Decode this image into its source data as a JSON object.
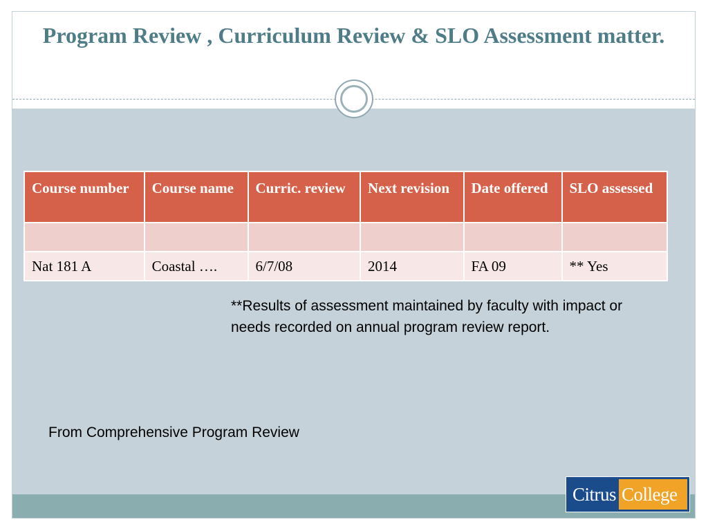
{
  "slide": {
    "title": "Program Review , Curriculum Review & SLO Assessment matter.",
    "table": {
      "headers": [
        "Course number",
        "Course name",
        "Curric. review",
        "Next revision",
        "Date offered",
        "SLO assessed"
      ],
      "rows": [
        [
          "",
          "",
          "",
          "",
          "",
          ""
        ],
        [
          "Nat 181 A",
          "Coastal ….",
          "6/7/08",
          "2014",
          "FA 09",
          "** Yes"
        ]
      ]
    },
    "footnote": "**Results of assessment maintained by faculty with impact or needs recorded on annual program review report.",
    "source": "From Comprehensive Program Review",
    "logo": {
      "text_a": "Citrus",
      "text_b": "College"
    }
  },
  "colors": {
    "title": "#4f7d87",
    "header_fill": "#d5614a",
    "row_light": "#efcfcc",
    "row_lighter": "#f7e8e7",
    "background": "#c5d2d9",
    "footer_band": "#8aadb0",
    "logo_blue": "#1a4c8b",
    "logo_orange": "#f0a327"
  }
}
